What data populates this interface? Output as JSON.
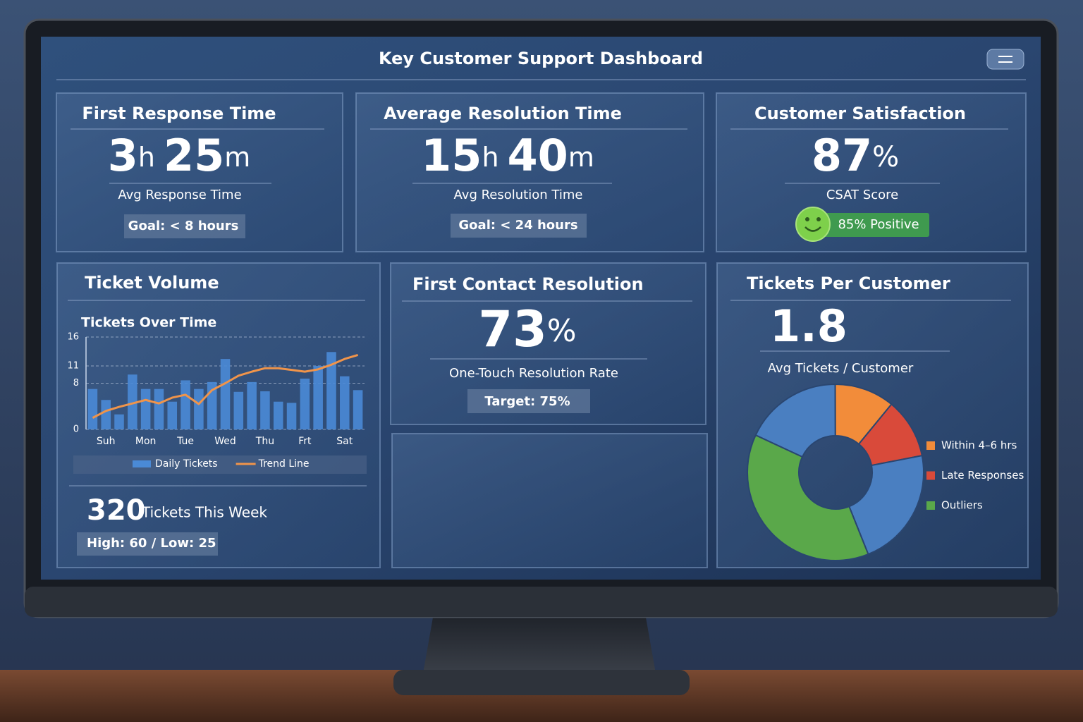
{
  "header": {
    "title": "Key Customer Support Dashboard"
  },
  "first_response": {
    "title": "First Response Time",
    "value": [
      "3",
      "h",
      "25",
      "m"
    ],
    "subtitle": "Avg Response Time",
    "goal": "Goal: < 8 hours"
  },
  "avg_resolution": {
    "title": "Average Resolution Time",
    "value": [
      "15",
      "h",
      "40",
      "m"
    ],
    "subtitle": "Avg Resolution Time",
    "goal": "Goal: < 24 hours"
  },
  "csat": {
    "title": "Customer Satisfaction",
    "value": [
      "87",
      "%"
    ],
    "subtitle": "CSAT Score",
    "badge": "85% Positive"
  },
  "ticket_volume": {
    "title": "Ticket Volume",
    "chart": {
      "type": "bar",
      "title": "Tickets Over Time",
      "categories": [
        null,
        "Suh",
        null,
        null,
        "Mon",
        null,
        null,
        "Tue",
        null,
        null,
        "Wed",
        null,
        null,
        "Thu",
        null,
        null,
        "Frt",
        null,
        null,
        "Sat",
        null
      ],
      "series": [
        {
          "name": "Daily Tickets",
          "type": "bar",
          "color": "#4a8ad6",
          "values": [
            7,
            5.1,
            2.6,
            9.5,
            7,
            7,
            4.8,
            8.5,
            7,
            8.2,
            12.2,
            6.5,
            8.2,
            6.6,
            4.8,
            4.6,
            8.8,
            11,
            13.4,
            9.2,
            6.8
          ]
        },
        {
          "name": "Trend Line",
          "type": "line",
          "color": "#f0944a",
          "values": [
            2,
            3.2,
            3.9,
            4.5,
            5.1,
            4.5,
            5.5,
            6,
            4.4,
            6.8,
            8,
            9.3,
            10,
            10.6,
            10.6,
            10.3,
            10,
            10.4,
            11.2,
            12.2,
            12.9
          ]
        }
      ],
      "ylim": [
        0,
        16
      ],
      "yticks": [
        0,
        8,
        11,
        16
      ],
      "grid": true,
      "legend": "bottom"
    },
    "total": "320",
    "total_label": "Tickets This Week",
    "range": "High: 60 / Low: 25"
  },
  "fcr": {
    "title": "First Contact Resolution",
    "value": [
      "73",
      "%"
    ],
    "subtitle": "One-Touch Resolution Rate",
    "target": "Target: 75%"
  },
  "tickets_per_customer": {
    "title": "Tickets Per Customer",
    "value": "1.8",
    "subtitle": "Avg Tickets / Customer",
    "chart": {
      "type": "donut",
      "series": [
        {
          "color": "#4a7fc1",
          "values": [
            18
          ]
        },
        {
          "name": "Within 4–6 hrs",
          "color": "#f28c3a",
          "values": [
            11
          ]
        },
        {
          "name": "Late Responses",
          "color": "#d94a3a",
          "values": [
            11
          ]
        },
        {
          "color": "#4a7fc1",
          "values": [
            22
          ]
        },
        {
          "name": "Outliers",
          "color": "#5aa84a",
          "values": [
            38
          ]
        }
      ],
      "legend": "right"
    }
  }
}
